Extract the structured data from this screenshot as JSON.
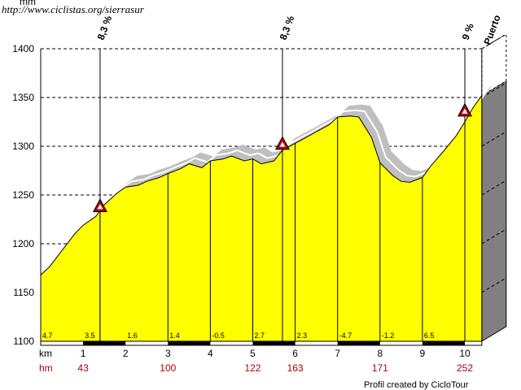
{
  "header": {
    "url_text": "http://www.ciclistas.org/sierrasur",
    "unit_top": "mm"
  },
  "footer": {
    "credit": "Profil created by CicloTour",
    "km_label": "km",
    "hm_label": "hm"
  },
  "colors": {
    "fill": "#ffff00",
    "shadow": "#bfbfbf",
    "side": "#808080",
    "hm_text": "#b00000",
    "marker": "#cc0000"
  },
  "chart_data": {
    "type": "area",
    "title": "",
    "xlabel": "km",
    "ylabel": "",
    "xlim": [
      0,
      10.4
    ],
    "ylim": [
      1100,
      1400
    ],
    "grid": true,
    "y_ticks": [
      1100,
      1150,
      1200,
      1250,
      1300,
      1350,
      1400
    ],
    "x_ticks": [
      1,
      2,
      3,
      4,
      5,
      6,
      7,
      8,
      9,
      10
    ],
    "profile": {
      "x": [
        0.0,
        0.2,
        0.5,
        0.8,
        1.0,
        1.3,
        1.5,
        1.8,
        2.0,
        2.3,
        2.5,
        2.8,
        3.0,
        3.3,
        3.5,
        3.8,
        4.0,
        4.3,
        4.5,
        4.8,
        5.0,
        5.2,
        5.5,
        5.7,
        6.0,
        6.3,
        6.5,
        6.8,
        7.0,
        7.3,
        7.5,
        7.8,
        8.0,
        8.3,
        8.5,
        8.7,
        9.0,
        9.2,
        9.5,
        9.8,
        10.0,
        10.2,
        10.4
      ],
      "elevation": [
        1168,
        1176,
        1193,
        1210,
        1219,
        1228,
        1240,
        1252,
        1258,
        1260,
        1264,
        1268,
        1272,
        1277,
        1282,
        1278,
        1285,
        1287,
        1290,
        1285,
        1287,
        1282,
        1285,
        1296,
        1303,
        1310,
        1315,
        1322,
        1330,
        1331,
        1330,
        1309,
        1283,
        1270,
        1264,
        1263,
        1268,
        1280,
        1295,
        1311,
        1325,
        1340,
        1352
      ]
    },
    "segments": [
      {
        "km": 1,
        "gradient": "4.7"
      },
      {
        "km": 2,
        "gradient": "3.5"
      },
      {
        "km": 3,
        "gradient": "1.6"
      },
      {
        "km": 4,
        "gradient": "1.4"
      },
      {
        "km": 5,
        "gradient": "-0.5"
      },
      {
        "km": 6,
        "gradient": "2.7"
      },
      {
        "km": 7,
        "gradient": "2.3"
      },
      {
        "km": 8,
        "gradient": "-4.7"
      },
      {
        "km": 9,
        "gradient": "-1.2"
      },
      {
        "km": 10,
        "gradient": "6.5"
      }
    ],
    "cumulative_hm": [
      {
        "km": 1,
        "value": "43"
      },
      {
        "km": 3,
        "value": "100"
      },
      {
        "km": 5,
        "value": "122"
      },
      {
        "km": 6,
        "value": "163"
      },
      {
        "km": 8,
        "value": "171"
      },
      {
        "km": 10,
        "value": "252"
      }
    ],
    "markers": [
      {
        "km": 1.4,
        "elevation": 1238,
        "label": "8,3 %"
      },
      {
        "km": 5.7,
        "elevation": 1302,
        "label": "8,3 %"
      },
      {
        "km": 10.0,
        "elevation": 1336,
        "label": "9 %"
      }
    ],
    "end_label": {
      "km": 10.4,
      "label": "Puerto"
    },
    "km_markers": [
      1.4,
      3.0,
      4.0,
      5.0,
      6.0,
      7.0,
      8.0,
      9.0
    ]
  }
}
